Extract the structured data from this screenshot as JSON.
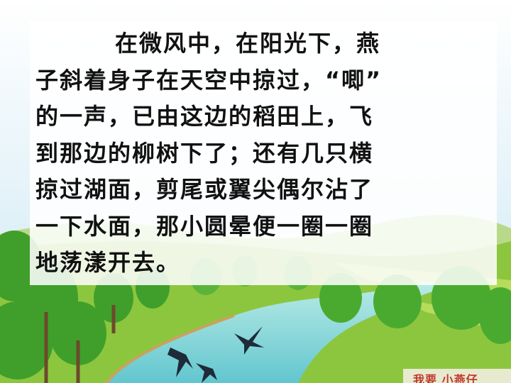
{
  "passage": {
    "lines": [
      "在微风中，在阳光下，燕",
      "子斜着身子在天空中掠过，“唧”",
      "的一声，已由这边的稻田上，飞",
      "到那边的柳树下了；还有几只横",
      "掠过湖面，剪尾或翼尖偶尔沾了",
      "一下水面，那小圆晕便一圈一圈",
      "地荡漾开去。"
    ]
  },
  "scene": {
    "sky_color": "#dff0f8",
    "grass_color": "#8cc63f",
    "river_color": "#7fd3d6",
    "tree_color": "#3f9f2a",
    "swallow_color": "#1e2b38"
  },
  "corner_tag": {
    "text": "我要 小燕仔"
  }
}
